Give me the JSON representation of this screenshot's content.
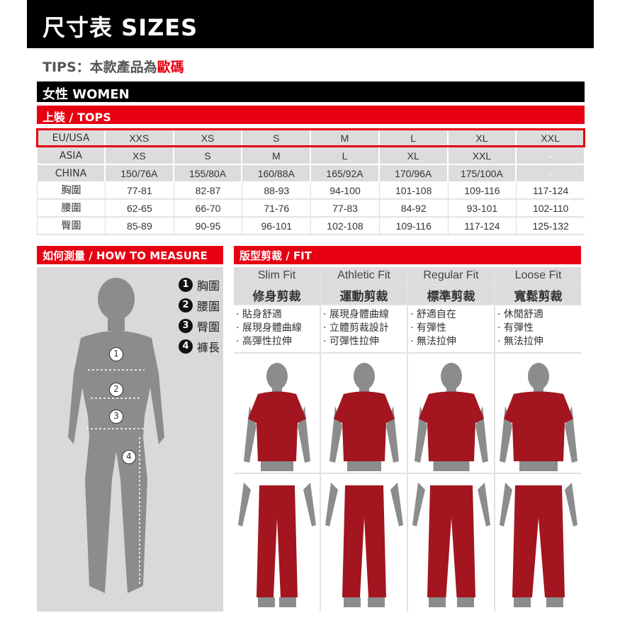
{
  "header": {
    "title": "尺寸表  SIZES"
  },
  "tips": {
    "prefix": "TIPS：本款產品為",
    "highlight": "歐碼"
  },
  "section": {
    "women": "女性 WOMEN",
    "tops": "上裝 / TOPS"
  },
  "size_table": {
    "rows": [
      {
        "label": "EU/USA",
        "cells": [
          "XXS",
          "XS",
          "S",
          "M",
          "L",
          "XL",
          "XXL"
        ]
      },
      {
        "label": "ASIA",
        "cells": [
          "XS",
          "S",
          "M",
          "L",
          "XL",
          "XXL",
          "-"
        ]
      },
      {
        "label": "CHINA",
        "cells": [
          "150/76A",
          "155/80A",
          "160/88A",
          "165/92A",
          "170/96A",
          "175/100A",
          "-"
        ]
      },
      {
        "label": "胸圍",
        "cells": [
          "77-81",
          "82-87",
          "88-93",
          "94-100",
          "101-108",
          "109-116",
          "117-124"
        ]
      },
      {
        "label": "腰圍",
        "cells": [
          "62-65",
          "66-70",
          "71-76",
          "77-83",
          "84-92",
          "93-101",
          "102-110"
        ]
      },
      {
        "label": "臀圍",
        "cells": [
          "85-89",
          "90-95",
          "96-101",
          "102-108",
          "109-116",
          "117-124",
          "125-132"
        ]
      }
    ]
  },
  "measure": {
    "title": "如何測量 / HOW TO MEASURE",
    "legend": [
      {
        "n": "1",
        "label": "胸圍"
      },
      {
        "n": "2",
        "label": "腰圍"
      },
      {
        "n": "3",
        "label": "臀圍"
      },
      {
        "n": "4",
        "label": "褲長"
      }
    ]
  },
  "fit": {
    "title": "版型剪裁 / FIT",
    "columns": [
      {
        "en": "Slim Fit",
        "zh": "修身剪裁",
        "points": [
          "· 貼身舒適",
          "· 展現身體曲線",
          "· 高彈性拉伸"
        ]
      },
      {
        "en": "Athletic Fit",
        "zh": "運動剪裁",
        "points": [
          "· 展現身體曲線",
          "· 立體剪裁設計",
          "· 可彈性拉伸"
        ]
      },
      {
        "en": "Regular Fit",
        "zh": "標準剪裁",
        "points": [
          "· 舒適自在",
          "· 有彈性",
          "· 無法拉伸"
        ]
      },
      {
        "en": "Loose Fit",
        "zh": "寬鬆剪裁",
        "points": [
          "· 休閒舒適",
          "· 有彈性",
          "· 無法拉伸"
        ]
      }
    ]
  },
  "colors": {
    "accent": "#e60012",
    "garment": "#a3151f",
    "body": "#8c8c8c"
  }
}
